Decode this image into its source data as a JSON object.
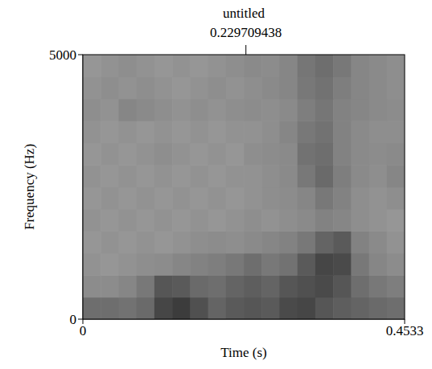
{
  "chart_data": {
    "type": "heatmap",
    "title": "untitled",
    "cursor": 0.229709438,
    "x_label": "Time (s)",
    "y_label": "Frequency (Hz)",
    "xlim": [
      0,
      0.4533
    ],
    "xticks": [
      0,
      0.4533
    ],
    "ylim": [
      0,
      5000
    ],
    "yticks": [
      0,
      5000
    ],
    "x": [
      0.0126,
      0.0378,
      0.063,
      0.0881,
      0.1133,
      0.1385,
      0.1637,
      0.1889,
      0.2141,
      0.2393,
      0.2645,
      0.2896,
      0.3148,
      0.34,
      0.3652,
      0.3904,
      0.4156,
      0.4407
    ],
    "y": [
      208,
      625,
      1042,
      1458,
      1875,
      2292,
      2708,
      3125,
      3542,
      3958,
      4375,
      4792
    ],
    "cells": [
      [
        60,
        60,
        58,
        62,
        80,
        85,
        75,
        65,
        70,
        72,
        70,
        78,
        80,
        72,
        68,
        65,
        62,
        60
      ],
      [
        45,
        45,
        48,
        55,
        72,
        70,
        62,
        60,
        65,
        68,
        65,
        72,
        75,
        78,
        72,
        60,
        55,
        52
      ],
      [
        42,
        40,
        42,
        44,
        45,
        48,
        50,
        52,
        55,
        60,
        55,
        58,
        70,
        80,
        78,
        55,
        48,
        45
      ],
      [
        40,
        42,
        40,
        42,
        40,
        42,
        44,
        45,
        44,
        46,
        48,
        50,
        55,
        65,
        70,
        50,
        46,
        42
      ],
      [
        42,
        40,
        42,
        40,
        42,
        40,
        42,
        40,
        42,
        44,
        42,
        44,
        46,
        50,
        48,
        44,
        42,
        40
      ],
      [
        40,
        42,
        40,
        42,
        40,
        42,
        40,
        42,
        40,
        42,
        44,
        45,
        48,
        55,
        50,
        44,
        42,
        44
      ],
      [
        42,
        40,
        42,
        40,
        42,
        40,
        42,
        40,
        42,
        42,
        44,
        46,
        55,
        62,
        52,
        46,
        44,
        48
      ],
      [
        40,
        42,
        40,
        42,
        44,
        42,
        40,
        42,
        40,
        44,
        45,
        46,
        58,
        60,
        50,
        46,
        45,
        46
      ],
      [
        42,
        40,
        42,
        40,
        42,
        40,
        42,
        40,
        42,
        42,
        44,
        48,
        55,
        58,
        50,
        46,
        44,
        44
      ],
      [
        44,
        42,
        48,
        46,
        44,
        42,
        44,
        42,
        44,
        45,
        44,
        46,
        52,
        56,
        50,
        48,
        46,
        45
      ],
      [
        42,
        44,
        42,
        44,
        42,
        40,
        42,
        44,
        42,
        44,
        46,
        48,
        55,
        58,
        52,
        48,
        46,
        44
      ],
      [
        40,
        42,
        44,
        42,
        40,
        42,
        40,
        42,
        44,
        46,
        45,
        48,
        56,
        60,
        55,
        48,
        46,
        44
      ]
    ]
  }
}
